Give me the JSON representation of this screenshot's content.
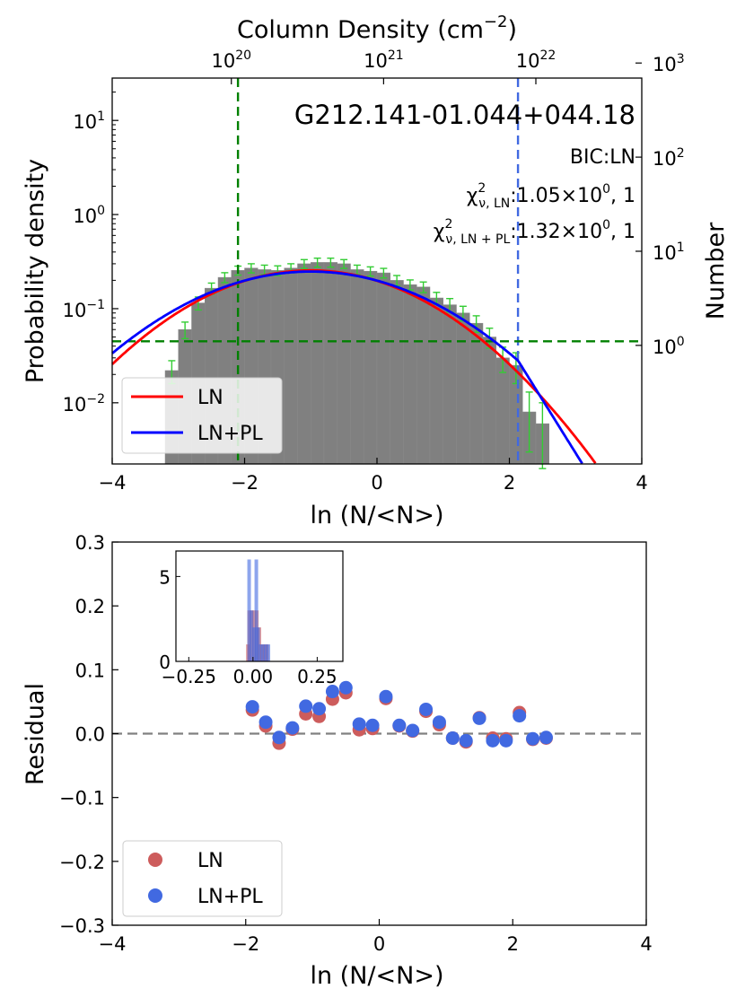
{
  "chart_data": [
    {
      "type": "bar",
      "panel": "top",
      "title": "G212.141-01.044+044.18",
      "xlabel": "ln (N/<N>)",
      "ylabel": "Probability density",
      "ylabel_right": "Number",
      "xlabel_top_base": "Column Density (cm",
      "xlabel_top_exp": "−2",
      "xlabel_top_end": ")",
      "xlim": [
        -4,
        4
      ],
      "ylim_log10": [
        -2.65,
        1.45
      ],
      "xticks": [
        -4,
        -2,
        0,
        2,
        4
      ],
      "xtick_labels": [
        "−4",
        "−2",
        "0",
        "2",
        "4"
      ],
      "yticks": [
        {
          "exp": 1,
          "base": "10",
          "sup": "1"
        },
        {
          "exp": 0,
          "base": "10",
          "sup": "0"
        },
        {
          "exp": -1,
          "base": "10",
          "sup": "−1"
        },
        {
          "exp": -2,
          "base": "10",
          "sup": "−2"
        }
      ],
      "right_ticks": [
        {
          "log10N": 3,
          "base": "10",
          "sup": "3"
        },
        {
          "log10N": 2,
          "base": "10",
          "sup": "2"
        },
        {
          "log10N": 1,
          "base": "10",
          "sup": "1"
        },
        {
          "log10N": 0,
          "base": "10",
          "sup": "0"
        }
      ],
      "right_axis_offset_log10": -1.39,
      "top_ticks": [
        {
          "ln": -2.2,
          "base": "10",
          "sup": "20"
        },
        {
          "ln": 0.1,
          "base": "10",
          "sup": "21"
        },
        {
          "ln": 2.4,
          "base": "10",
          "sup": "22"
        }
      ],
      "histogram": {
        "bin_width": 0.2,
        "bin_left_edges": [
          -3.2,
          -3.0,
          -2.8,
          -2.6,
          -2.4,
          -2.2,
          -2.0,
          -1.8,
          -1.6,
          -1.4,
          -1.2,
          -1.0,
          -0.8,
          -0.6,
          -0.4,
          -0.2,
          0.0,
          0.2,
          0.4,
          0.6,
          0.8,
          1.0,
          1.2,
          1.4,
          1.6,
          1.8,
          2.0,
          2.2,
          2.4
        ],
        "values": [
          0.022,
          0.06,
          0.115,
          0.165,
          0.215,
          0.255,
          0.27,
          0.26,
          0.255,
          0.27,
          0.3,
          0.31,
          0.31,
          0.3,
          0.26,
          0.25,
          0.24,
          0.2,
          0.18,
          0.17,
          0.13,
          0.11,
          0.09,
          0.07,
          0.05,
          0.03,
          0.025,
          0.008,
          0.006
        ],
        "errors": [
          0.006,
          0.012,
          0.018,
          0.022,
          0.026,
          0.028,
          0.03,
          0.03,
          0.03,
          0.03,
          0.032,
          0.034,
          0.034,
          0.032,
          0.03,
          0.028,
          0.028,
          0.025,
          0.022,
          0.022,
          0.019,
          0.018,
          0.016,
          0.014,
          0.012,
          0.009,
          0.009,
          0.005,
          0.004
        ]
      },
      "series": [
        {
          "name": "LN",
          "color": "#ff0000",
          "model": "lognormal",
          "amplitude": 0.255,
          "mu": -1.0,
          "sigma": 1.4
        },
        {
          "name": "LN+PL",
          "color": "#0000ff",
          "model": "lognormal_powerlaw",
          "amplitude": 0.248,
          "mu": -1.0,
          "sigma": 1.5,
          "break_ln": 2.13,
          "slope": -2.6
        }
      ],
      "annotations": {
        "bic": "BIC:LN",
        "chi_ln_prefix": "χ",
        "chi_ln_sup": "2",
        "chi_ln_sub": "ν, LN",
        "chi_ln_value": ":1.05×10",
        "chi_ln_exp": "0",
        "chi_ln_tail": ", 1",
        "chi_lnpl_prefix": "χ",
        "chi_lnpl_sup": "2",
        "chi_lnpl_sub": "ν, LN + PL",
        "chi_lnpl_value": ":1.32×10",
        "chi_lnpl_exp": "0",
        "chi_lnpl_tail": ", 1"
      },
      "vline_green_x": -2.1,
      "vline_blue_x": 2.13,
      "hline_green_y": 0.045,
      "legend": {
        "position": "lower-left",
        "entries": [
          "LN",
          "LN+PL"
        ]
      }
    },
    {
      "type": "scatter",
      "panel": "bottom",
      "xlabel": "ln (N/<N>)",
      "ylabel": "Residual",
      "xlim": [
        -4,
        4
      ],
      "ylim": [
        -0.3,
        0.3
      ],
      "xticks": [
        -4,
        -2,
        0,
        2,
        4
      ],
      "xtick_labels": [
        "−4",
        "−2",
        "0",
        "2",
        "4"
      ],
      "yticks": [
        0.3,
        0.2,
        0.1,
        0.0,
        -0.1,
        -0.2,
        -0.3
      ],
      "ytick_labels": [
        "0.3",
        "0.2",
        "0.1",
        "0.0",
        "−0.1",
        "−0.2",
        "−0.3"
      ],
      "hline_y": 0.0,
      "x": [
        -1.9,
        -1.7,
        -1.5,
        -1.3,
        -1.1,
        -0.9,
        -0.7,
        -0.5,
        -0.3,
        -0.1,
        0.1,
        0.3,
        0.5,
        0.7,
        0.9,
        1.1,
        1.3,
        1.5,
        1.7,
        1.9,
        2.1,
        2.3,
        2.5
      ],
      "series": [
        {
          "name": "LN",
          "color": "#cd5c5c",
          "values": [
            0.037,
            0.012,
            -0.015,
            0.007,
            0.031,
            0.027,
            0.054,
            0.064,
            0.006,
            0.008,
            0.055,
            0.012,
            0.004,
            0.035,
            0.014,
            -0.007,
            -0.013,
            0.025,
            -0.007,
            -0.008,
            0.033,
            -0.009,
            -0.007
          ]
        },
        {
          "name": "LN+PL",
          "color": "#4169e1",
          "values": [
            0.042,
            0.018,
            -0.006,
            0.009,
            0.043,
            0.039,
            0.066,
            0.072,
            0.015,
            0.013,
            0.058,
            0.013,
            0.005,
            0.038,
            0.018,
            -0.007,
            -0.011,
            0.024,
            -0.011,
            -0.011,
            0.028,
            -0.008,
            -0.006
          ]
        }
      ],
      "legend": {
        "position": "lower-left",
        "entries": [
          "LN",
          "LN+PL"
        ]
      }
    },
    {
      "type": "bar",
      "panel": "inset",
      "xlim": [
        -0.3,
        0.35
      ],
      "ylim": [
        0,
        6.5
      ],
      "xticks": [
        -0.25,
        0.0,
        0.25
      ],
      "xtick_labels": [
        "−0.25",
        "0.00",
        "0.25"
      ],
      "yticks": [
        0,
        5
      ],
      "ytick_labels": [
        "0",
        "5"
      ],
      "series": [
        {
          "name": "LN",
          "color": "#cd5c5c",
          "bins": [
            [
              -0.02,
              1
            ],
            [
              -0.015,
              3
            ],
            [
              -0.005,
              3
            ],
            [
              0.005,
              3
            ],
            [
              0.015,
              3
            ],
            [
              0.025,
              2
            ],
            [
              0.035,
              1
            ],
            [
              0.045,
              1
            ],
            [
              0.055,
              1
            ]
          ]
        },
        {
          "name": "LN+PL",
          "color": "#4169e1",
          "bins": [
            [
              -0.015,
              6
            ],
            [
              -0.005,
              3
            ],
            [
              0.005,
              2
            ],
            [
              0.013,
              6
            ],
            [
              0.02,
              2
            ],
            [
              0.03,
              1
            ],
            [
              0.04,
              1
            ],
            [
              0.05,
              1
            ],
            [
              0.06,
              1
            ]
          ]
        }
      ]
    }
  ]
}
